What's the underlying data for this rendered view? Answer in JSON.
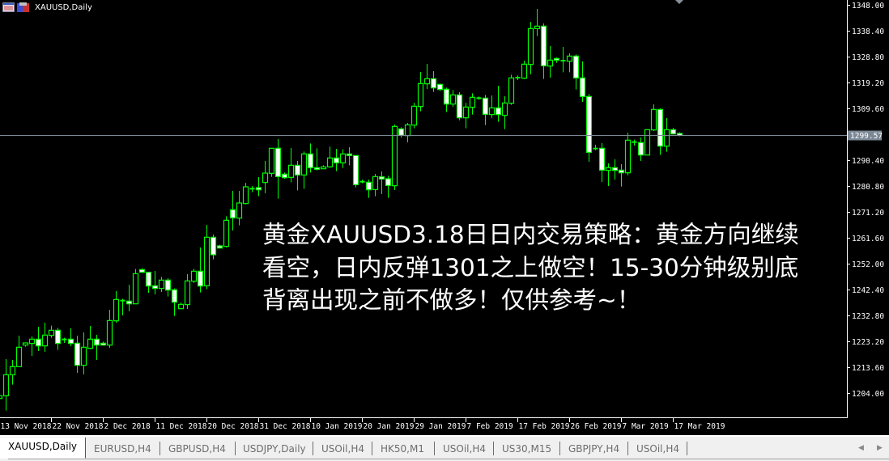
{
  "window": {
    "title": "XAUUSD,Daily"
  },
  "overlay_text": {
    "line1": "黄金XAUUSD3.18日日内交易策略：黄金方向继续",
    "line2": "看空，日内反弹1301之上做空！15-30分钟级别底",
    "line3": "背离出现之前不做多！仅供参考~！"
  },
  "tabs": [
    {
      "label": "XAUUSD,Daily",
      "active": true
    },
    {
      "label": "EURUSD,H4"
    },
    {
      "label": "GBPUSD,H4"
    },
    {
      "label": "USDJPY,Daily"
    },
    {
      "label": "USOil,H4"
    },
    {
      "label": "HK50,M1"
    },
    {
      "label": "USOil,H4"
    },
    {
      "label": "US30,M15"
    },
    {
      "label": "GBPJPY,H4"
    },
    {
      "label": "USOil,H4"
    }
  ],
  "colors": {
    "background": "#000000",
    "candle_outline": "#00ff00",
    "bear_fill": "#ffffff",
    "bull_fill": "#000000",
    "price_line": "#7b8794",
    "axis": "#ffffff"
  },
  "chart_data": {
    "type": "candlestick",
    "symbol": "XAUUSD",
    "timeframe": "Daily",
    "current_price": "1299.57",
    "ylim": [
      1204.0,
      1348.0
    ],
    "y_ticks": [
      "1348.00",
      "1338.40",
      "1328.80",
      "1319.20",
      "1309.60",
      "1290.40",
      "1280.80",
      "1271.20",
      "1261.60",
      "1252.00",
      "1242.40",
      "1232.80",
      "1223.20",
      "1213.60",
      "1204.00"
    ],
    "x_ticks": [
      "13 Nov 2018",
      "22 Nov 2018",
      "2 Dec 2018",
      "11 Dec 2018",
      "20 Dec 2018",
      "31 Dec 2018",
      "10 Jan 2019",
      "20 Jan 2019",
      "29 Jan 2019",
      "7 Feb 2019",
      "17 Feb 2019",
      "26 Feb 2019",
      "7 Mar 2019",
      "17 Mar 2019"
    ],
    "ohlc_fields": [
      "open",
      "high",
      "low",
      "close"
    ],
    "candles": [
      [
        1202.0,
        1203.1,
        1201.9,
        1203.0
      ],
      [
        1203.0,
        1216.6,
        1197.5,
        1210.8
      ],
      [
        1210.8,
        1216.3,
        1207.1,
        1213.8
      ],
      [
        1213.8,
        1225.3,
        1213.8,
        1221.0
      ],
      [
        1221.8,
        1222.6,
        1221.2,
        1222.6
      ],
      [
        1222.4,
        1225.0,
        1217.8,
        1224.0
      ],
      [
        1224.0,
        1228.6,
        1219.6,
        1221.5
      ],
      [
        1221.5,
        1230.1,
        1219.3,
        1225.5
      ],
      [
        1225.4,
        1229.0,
        1224.5,
        1227.3
      ],
      [
        1227.3,
        1228.2,
        1220.0,
        1222.4
      ],
      [
        1223.9,
        1224.5,
        1222.6,
        1223.9
      ],
      [
        1224.0,
        1228.0,
        1221.4,
        1222.4
      ],
      [
        1222.5,
        1225.3,
        1211.5,
        1214.3
      ],
      [
        1214.3,
        1226.5,
        1210.9,
        1221.0
      ],
      [
        1220.6,
        1228.9,
        1220.3,
        1224.0
      ],
      [
        1224.0,
        1225.6,
        1216.3,
        1221.8
      ],
      [
        1222.5,
        1223.1,
        1221.6,
        1221.8
      ],
      [
        1221.8,
        1234.9,
        1220.8,
        1230.9
      ],
      [
        1230.8,
        1241.8,
        1230.1,
        1238.7
      ],
      [
        1238.3,
        1239.0,
        1232.8,
        1238.3
      ],
      [
        1238.1,
        1244.2,
        1234.3,
        1237.1
      ],
      [
        1237.1,
        1250.0,
        1237.1,
        1248.3
      ],
      [
        1249.8,
        1250.3,
        1248.5,
        1248.8
      ],
      [
        1248.8,
        1249.0,
        1241.2,
        1243.7
      ],
      [
        1243.8,
        1249.3,
        1240.6,
        1242.8
      ],
      [
        1242.8,
        1247.1,
        1241.5,
        1245.9
      ],
      [
        1245.9,
        1246.6,
        1239.8,
        1242.2
      ],
      [
        1242.3,
        1242.8,
        1232.6,
        1237.7
      ],
      [
        1235.3,
        1237.6,
        1235.3,
        1236.9
      ],
      [
        1236.8,
        1248.1,
        1235.2,
        1245.6
      ],
      [
        1245.5,
        1250.1,
        1244.8,
        1249.2
      ],
      [
        1249.2,
        1258.0,
        1241.3,
        1243.7
      ],
      [
        1243.8,
        1266.4,
        1242.5,
        1261.8
      ],
      [
        1261.8,
        1262.8,
        1253.6,
        1255.3
      ],
      [
        1258.6,
        1259.0,
        1257.6,
        1257.8
      ],
      [
        1258.4,
        1269.6,
        1258.0,
        1268.1
      ],
      [
        1272.0,
        1279.0,
        1264.3,
        1269.0
      ],
      [
        1268.9,
        1279.0,
        1266.2,
        1274.5
      ],
      [
        1274.3,
        1282.0,
        1274.0,
        1280.5
      ],
      [
        1279.8,
        1280.8,
        1278.5,
        1279.8
      ],
      [
        1280.2,
        1284.1,
        1277.0,
        1279.4
      ],
      [
        1282.1,
        1290.1,
        1278.1,
        1285.6
      ],
      [
        1285.5,
        1294.8,
        1284.2,
        1294.8
      ],
      [
        1294.8,
        1298.2,
        1276.1,
        1284.3
      ],
      [
        1285.2,
        1285.8,
        1283.5,
        1283.9
      ],
      [
        1284.0,
        1294.9,
        1282.2,
        1288.5
      ],
      [
        1288.5,
        1290.1,
        1279.2,
        1284.9
      ],
      [
        1284.9,
        1293.6,
        1279.8,
        1292.7
      ],
      [
        1292.7,
        1296.6,
        1285.8,
        1287.6
      ],
      [
        1287.6,
        1294.8,
        1286.6,
        1287.0
      ],
      [
        1287.2,
        1288.5,
        1287.1,
        1287.9
      ],
      [
        1287.9,
        1295.4,
        1287.6,
        1291.2
      ],
      [
        1291.2,
        1294.6,
        1286.3,
        1289.4
      ],
      [
        1289.4,
        1294.4,
        1287.5,
        1292.7
      ],
      [
        1292.7,
        1295.2,
        1288.5,
        1292.1
      ],
      [
        1292.1,
        1292.1,
        1280.3,
        1281.3
      ],
      [
        1282.4,
        1283.2,
        1281.8,
        1282.4
      ],
      [
        1282.2,
        1283.2,
        1276.4,
        1279.4
      ],
      [
        1279.5,
        1285.3,
        1277.0,
        1284.3
      ],
      [
        1284.2,
        1286.2,
        1277.8,
        1283.4
      ],
      [
        1283.5,
        1284.6,
        1276.4,
        1281.0
      ],
      [
        1280.9,
        1303.6,
        1279.3,
        1302.9
      ],
      [
        1302.0,
        1302.6,
        1298.8,
        1299.6
      ],
      [
        1299.5,
        1304.2,
        1297.0,
        1303.5
      ],
      [
        1303.4,
        1311.7,
        1302.2,
        1310.4
      ],
      [
        1310.3,
        1323.1,
        1308.5,
        1318.8
      ],
      [
        1318.7,
        1326.1,
        1316.8,
        1320.6
      ],
      [
        1320.6,
        1323.4,
        1315.7,
        1317.2
      ],
      [
        1318.5,
        1318.8,
        1316.0,
        1316.6
      ],
      [
        1316.7,
        1317.3,
        1308.2,
        1311.2
      ],
      [
        1311.2,
        1316.4,
        1310.2,
        1314.6
      ],
      [
        1314.6,
        1315.6,
        1305.2,
        1306.1
      ],
      [
        1306.1,
        1311.7,
        1302.2,
        1310.1
      ],
      [
        1310.0,
        1315.2,
        1307.3,
        1313.7
      ],
      [
        1313.4,
        1314.0,
        1312.8,
        1313.4
      ],
      [
        1313.4,
        1314.6,
        1303.4,
        1307.4
      ],
      [
        1307.3,
        1314.4,
        1306.1,
        1309.8
      ],
      [
        1309.8,
        1318.0,
        1304.6,
        1307.3
      ],
      [
        1307.0,
        1314.1,
        1301.9,
        1311.6
      ],
      [
        1311.5,
        1322.1,
        1310.9,
        1320.9
      ],
      [
        1321.0,
        1321.8,
        1320.1,
        1321.0
      ],
      [
        1320.8,
        1327.3,
        1320.5,
        1326.0
      ],
      [
        1325.9,
        1341.7,
        1322.2,
        1339.2
      ],
      [
        1339.2,
        1346.5,
        1336.4,
        1340.1
      ],
      [
        1340.1,
        1341.1,
        1320.5,
        1325.4
      ],
      [
        1325.3,
        1332.7,
        1321.0,
        1327.5
      ],
      [
        1328.1,
        1328.5,
        1326.5,
        1327.5
      ],
      [
        1327.3,
        1332.4,
        1323.0,
        1327.3
      ],
      [
        1327.1,
        1330.0,
        1323.0,
        1329.0
      ],
      [
        1329.0,
        1329.6,
        1316.6,
        1320.9
      ],
      [
        1320.9,
        1327.0,
        1312.0,
        1314.0
      ],
      [
        1314.0,
        1315.0,
        1289.8,
        1293.3
      ],
      [
        1294.7,
        1296.1,
        1294.1,
        1294.7
      ],
      [
        1294.8,
        1296.7,
        1282.3,
        1286.7
      ],
      [
        1286.6,
        1289.2,
        1280.8,
        1287.6
      ],
      [
        1287.6,
        1290.7,
        1283.2,
        1286.6
      ],
      [
        1286.7,
        1288.9,
        1280.6,
        1285.7
      ],
      [
        1285.7,
        1300.6,
        1284.8,
        1297.8
      ],
      [
        1297.1,
        1298.0,
        1295.8,
        1297.1
      ],
      [
        1296.9,
        1298.8,
        1290.1,
        1292.3
      ],
      [
        1292.3,
        1301.7,
        1292.3,
        1301.7
      ],
      [
        1301.6,
        1311.1,
        1301.2,
        1309.2
      ],
      [
        1309.2,
        1309.6,
        1292.3,
        1295.6
      ],
      [
        1295.6,
        1306.0,
        1293.5,
        1301.7
      ],
      [
        1301.7,
        1302.4,
        1300.1,
        1300.1
      ],
      [
        1300.3,
        1300.7,
        1299.3,
        1299.57
      ]
    ]
  }
}
